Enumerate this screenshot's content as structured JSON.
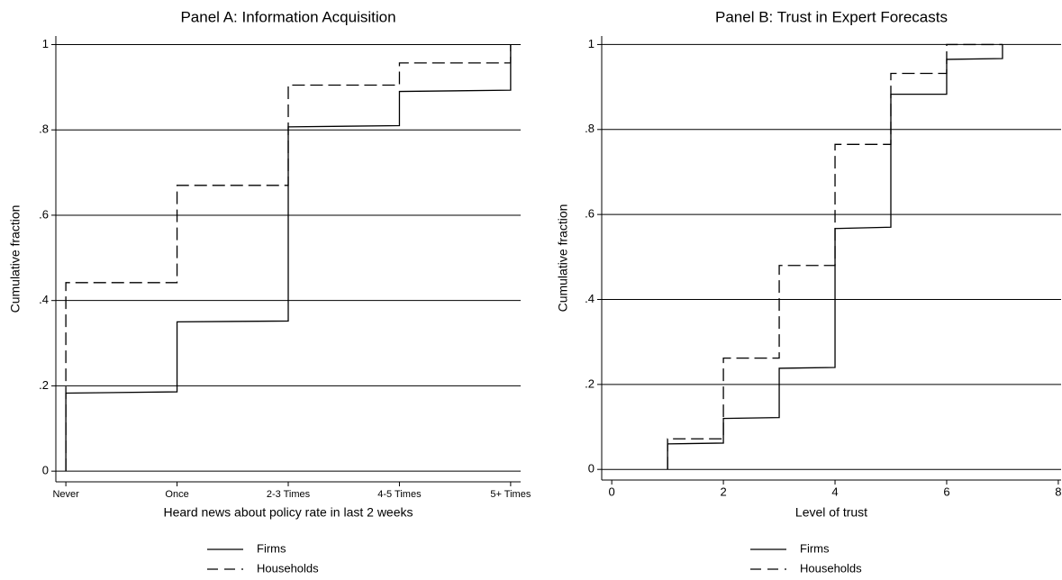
{
  "chart_data": [
    {
      "type": "line",
      "title": "Panel A: Information Acquisition",
      "xlabel": "Heard news about policy rate in last 2 weeks",
      "ylabel": "Cumulative fraction",
      "xlim": [
        -0.09,
        4.09
      ],
      "ylim": [
        -0.025,
        1.02
      ],
      "xticks": [
        {
          "value": 0,
          "label": "Never"
        },
        {
          "value": 1,
          "label": "Once"
        },
        {
          "value": 2,
          "label": "2-3 Times"
        },
        {
          "value": 3,
          "label": "4-5 Times"
        },
        {
          "value": 4,
          "label": "5+ Times"
        }
      ],
      "yticks": [
        0,
        {
          "value": 0.2,
          "label": ".2"
        },
        {
          "value": 0.4,
          "label": ".4"
        },
        {
          "value": 0.6,
          "label": ".6"
        },
        {
          "value": 0.8,
          "label": ".8"
        },
        1
      ],
      "grid": true,
      "series": [
        {
          "name": "Firms",
          "color": "#000000",
          "linestyle": "solid",
          "x": [
            0,
            0,
            1,
            1,
            2,
            2,
            3,
            3,
            4,
            4
          ],
          "values": [
            0,
            0.183,
            0.186,
            0.35,
            0.352,
            0.807,
            0.81,
            0.89,
            0.893,
            1.0
          ]
        },
        {
          "name": "Households",
          "color": "#000000",
          "linestyle": "dashed",
          "x": [
            0,
            0,
            1,
            1,
            2,
            2,
            3,
            3,
            4,
            4
          ],
          "values": [
            0,
            0.442,
            0.442,
            0.67,
            0.67,
            0.905,
            0.905,
            0.957,
            0.957,
            1.0
          ]
        }
      ]
    },
    {
      "type": "line",
      "title": "Panel B: Trust in Expert Forecasts",
      "xlabel": "Level of trust",
      "ylabel": "Cumulative fraction",
      "xlim": [
        -0.18,
        8.05
      ],
      "ylim": [
        -0.025,
        1.02
      ],
      "xticks": [
        0,
        2,
        4,
        6,
        8
      ],
      "yticks": [
        0,
        {
          "value": 0.2,
          "label": ".2"
        },
        {
          "value": 0.4,
          "label": ".4"
        },
        {
          "value": 0.6,
          "label": ".6"
        },
        {
          "value": 0.8,
          "label": ".8"
        },
        1
      ],
      "grid": true,
      "series": [
        {
          "name": "Firms",
          "color": "#000000",
          "linestyle": "solid",
          "x": [
            1,
            1,
            2,
            2,
            3,
            3,
            4,
            4,
            5,
            5,
            6,
            6,
            7,
            7
          ],
          "values": [
            0,
            0.06,
            0.062,
            0.12,
            0.122,
            0.238,
            0.24,
            0.567,
            0.57,
            0.883,
            0.883,
            0.965,
            0.967,
            1.0
          ]
        },
        {
          "name": "Households",
          "color": "#000000",
          "linestyle": "dashed",
          "x": [
            1,
            1,
            2,
            2,
            3,
            3,
            4,
            4,
            5,
            5,
            6,
            6,
            7
          ],
          "values": [
            0,
            0.072,
            0.072,
            0.262,
            0.262,
            0.48,
            0.48,
            0.765,
            0.765,
            0.932,
            0.932,
            1.0,
            1.0
          ]
        }
      ]
    }
  ]
}
